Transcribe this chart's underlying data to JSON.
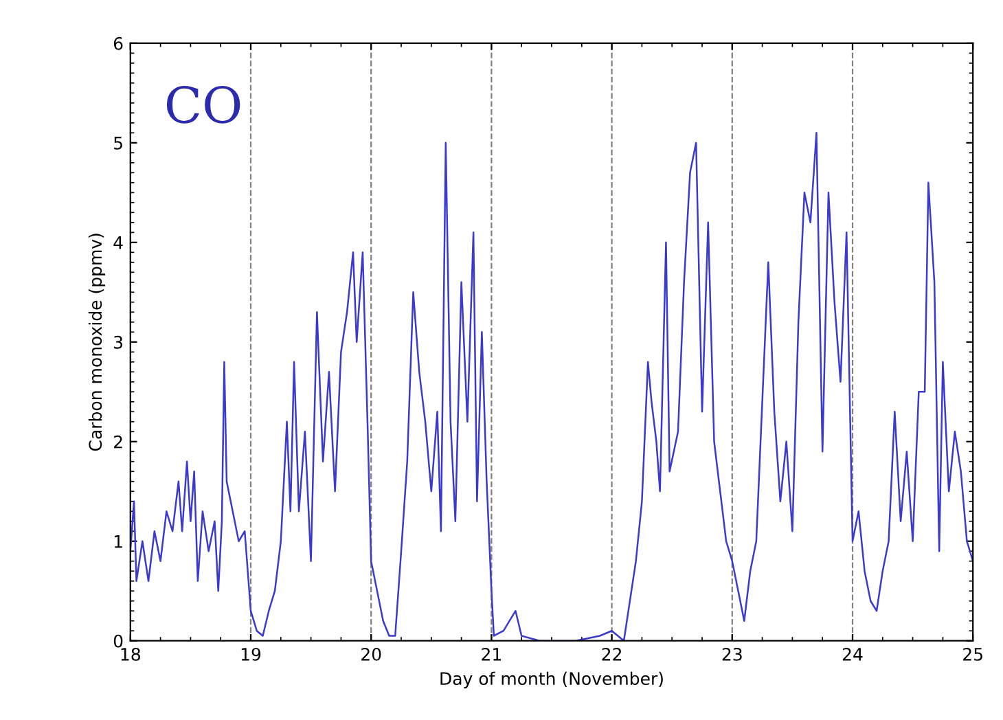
{
  "chart_data": {
    "type": "line",
    "xlabel": "Day of month (November)",
    "ylabel": "Carbon monoxide (ppmv)",
    "annotations": [
      "CO"
    ],
    "xlim": [
      18,
      25
    ],
    "xticks": [
      18,
      19,
      20,
      21,
      22,
      23,
      24,
      25
    ],
    "ylim": [
      0,
      6
    ],
    "yticks": [
      0,
      1,
      2,
      3,
      4,
      5,
      6
    ],
    "grid": false,
    "marker": "none",
    "line_style": "solid",
    "ref_lines": [
      {
        "axis": "x",
        "value": 19,
        "line_style": "dashed",
        "color": "#808080"
      },
      {
        "axis": "x",
        "value": 20,
        "line_style": "dashed",
        "color": "#808080"
      },
      {
        "axis": "x",
        "value": 21,
        "line_style": "dashed",
        "color": "#808080"
      },
      {
        "axis": "x",
        "value": 22,
        "line_style": "dashed",
        "color": "#808080"
      },
      {
        "axis": "x",
        "value": 23,
        "line_style": "dashed",
        "color": "#808080"
      },
      {
        "axis": "x",
        "value": 24,
        "line_style": "dashed",
        "color": "#808080"
      }
    ],
    "series": [
      {
        "color": "#3a3ad0",
        "x": [
          18.0,
          18.03,
          18.05,
          18.1,
          18.15,
          18.2,
          18.25,
          18.3,
          18.35,
          18.4,
          18.43,
          18.47,
          18.5,
          18.53,
          18.56,
          18.6,
          18.65,
          18.7,
          18.73,
          18.76,
          18.78,
          18.8,
          18.85,
          18.9,
          18.95,
          19.0,
          19.05,
          19.1,
          19.15,
          19.2,
          19.25,
          19.3,
          19.33,
          19.36,
          19.4,
          19.45,
          19.5,
          19.55,
          19.6,
          19.65,
          19.7,
          19.75,
          19.8,
          19.85,
          19.88,
          19.93,
          19.97,
          20.0,
          20.05,
          20.1,
          20.15,
          20.2,
          20.25,
          20.3,
          20.35,
          20.4,
          20.45,
          20.5,
          20.55,
          20.58,
          20.62,
          20.66,
          20.7,
          20.75,
          20.8,
          20.85,
          20.88,
          20.92,
          20.96,
          21.0,
          21.02,
          21.1,
          21.2,
          21.25,
          21.4,
          21.5,
          21.7,
          21.9,
          22.0,
          22.1,
          22.2,
          22.25,
          22.3,
          22.33,
          22.37,
          22.4,
          22.45,
          22.48,
          22.55,
          22.6,
          22.65,
          22.7,
          22.75,
          22.8,
          22.85,
          22.9,
          22.95,
          23.0,
          23.05,
          23.1,
          23.15,
          23.2,
          23.25,
          23.3,
          23.35,
          23.4,
          23.45,
          23.5,
          23.55,
          23.6,
          23.65,
          23.7,
          23.75,
          23.8,
          23.85,
          23.9,
          23.95,
          24.0,
          24.05,
          24.1,
          24.15,
          24.2,
          24.25,
          24.3,
          24.35,
          24.4,
          24.45,
          24.5,
          24.55,
          24.6,
          24.63,
          24.68,
          24.72,
          24.75,
          24.8,
          24.85,
          24.9,
          24.95,
          25.0
        ],
        "values": [
          0.9,
          1.4,
          0.6,
          1.0,
          0.6,
          1.1,
          0.8,
          1.3,
          1.1,
          1.6,
          1.1,
          1.8,
          1.2,
          1.7,
          0.6,
          1.3,
          0.9,
          1.2,
          0.5,
          1.2,
          2.8,
          1.6,
          1.3,
          1.0,
          1.1,
          0.3,
          0.1,
          0.05,
          0.3,
          0.5,
          1.0,
          2.2,
          1.3,
          2.8,
          1.3,
          2.1,
          0.8,
          3.3,
          1.8,
          2.7,
          1.5,
          2.9,
          3.3,
          3.9,
          3.0,
          3.9,
          2.2,
          0.8,
          0.5,
          0.2,
          0.05,
          0.05,
          0.9,
          1.8,
          3.5,
          2.7,
          2.2,
          1.5,
          2.3,
          1.1,
          5.0,
          2.2,
          1.2,
          3.6,
          2.2,
          4.1,
          1.4,
          3.1,
          1.6,
          0.5,
          0.05,
          0.1,
          0.3,
          0.05,
          0.0,
          0.0,
          0.0,
          0.05,
          0.1,
          0.0,
          0.8,
          1.4,
          2.8,
          2.4,
          2.0,
          1.5,
          4.0,
          1.7,
          2.1,
          3.6,
          4.7,
          5.0,
          2.3,
          4.2,
          2.0,
          1.5,
          1.0,
          0.8,
          0.5,
          0.2,
          0.7,
          1.0,
          2.4,
          3.8,
          2.3,
          1.4,
          2.0,
          1.1,
          3.2,
          4.5,
          4.2,
          5.1,
          1.9,
          4.5,
          3.4,
          2.6,
          4.1,
          1.0,
          1.3,
          0.7,
          0.4,
          0.3,
          0.7,
          1.0,
          2.3,
          1.2,
          1.9,
          1.0,
          2.5,
          2.5,
          4.6,
          3.6,
          0.9,
          2.8,
          1.5,
          2.1,
          1.7,
          1.0,
          0.8
        ]
      }
    ]
  }
}
